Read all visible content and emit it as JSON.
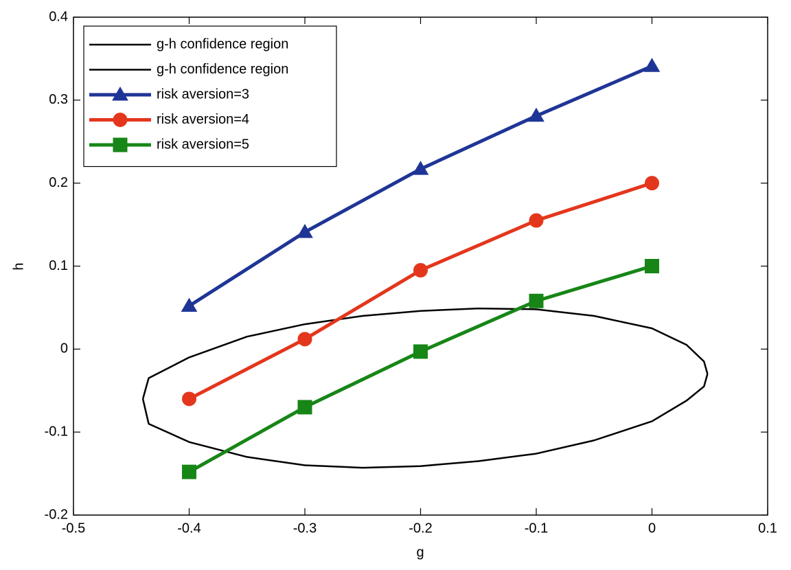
{
  "chart_data": {
    "type": "line",
    "xlabel": "g",
    "ylabel": "h",
    "xlim": [
      -0.5,
      0.1
    ],
    "xticks": [
      -0.5,
      -0.4,
      -0.3,
      -0.2,
      -0.1,
      0,
      0.1
    ],
    "ylim": [
      -0.2,
      0.4
    ],
    "yticks": [
      -0.2,
      -0.1,
      0,
      0.1,
      0.2,
      0.3,
      0.4
    ],
    "grid": false,
    "legend": "upper left",
    "series": [
      {
        "name": "g-h confidence region",
        "color": "#000000",
        "marker": "none",
        "x": [
          -0.44,
          -0.435,
          -0.4,
          -0.35,
          -0.3,
          -0.25,
          -0.2,
          -0.15,
          -0.1,
          -0.05,
          0,
          0.03,
          0.045,
          0.048
        ],
        "values": [
          -0.06,
          -0.035,
          -0.01,
          0.015,
          0.03,
          0.04,
          0.046,
          0.049,
          0.048,
          0.04,
          0.025,
          0.005,
          -0.015,
          -0.03
        ]
      },
      {
        "name": "g-h confidence region",
        "color": "#000000",
        "marker": "none",
        "x": [
          -0.44,
          -0.435,
          -0.4,
          -0.35,
          -0.3,
          -0.25,
          -0.2,
          -0.15,
          -0.1,
          -0.05,
          0,
          0.03,
          0.045,
          0.048
        ],
        "values": [
          -0.06,
          -0.09,
          -0.112,
          -0.13,
          -0.14,
          -0.143,
          -0.141,
          -0.135,
          -0.126,
          -0.11,
          -0.087,
          -0.062,
          -0.045,
          -0.03
        ]
      },
      {
        "name": "risk aversion=3",
        "color": "#1f3596",
        "marker": "triangle",
        "x": [
          -0.4,
          -0.3,
          -0.2,
          -0.1,
          0
        ],
        "values": [
          0.052,
          0.141,
          0.217,
          0.281,
          0.341
        ]
      },
      {
        "name": "risk aversion=4",
        "color": "#e4361c",
        "marker": "circle",
        "x": [
          -0.4,
          -0.3,
          -0.2,
          -0.1,
          0
        ],
        "values": [
          -0.06,
          0.012,
          0.095,
          0.155,
          0.2
        ]
      },
      {
        "name": "risk aversion=5",
        "color": "#178617",
        "marker": "square",
        "x": [
          -0.4,
          -0.3,
          -0.2,
          -0.1,
          0
        ],
        "values": [
          -0.148,
          -0.07,
          -0.003,
          0.058,
          0.1
        ]
      }
    ]
  }
}
